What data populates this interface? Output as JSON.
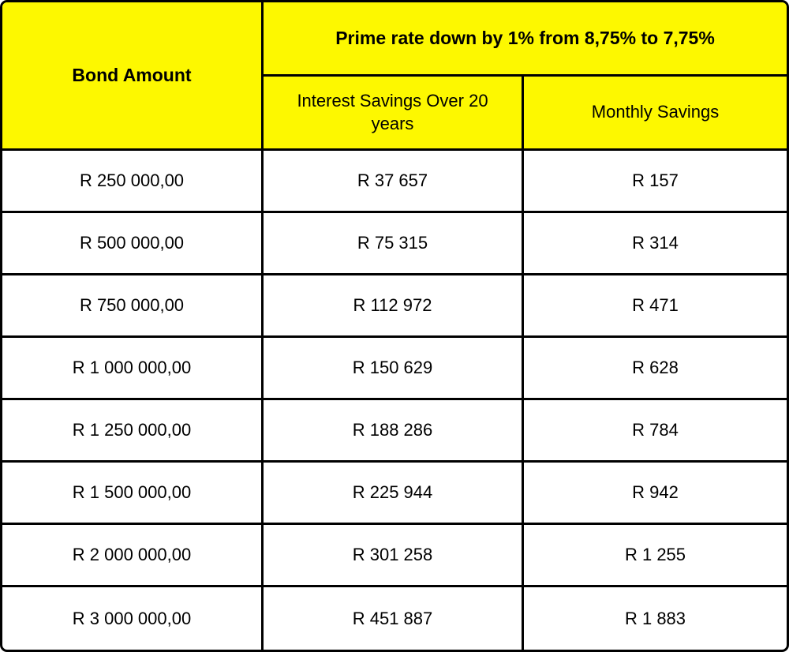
{
  "chart_data": {
    "type": "table",
    "title": "Prime rate down by 1% from 8,75% to 7,75%",
    "columns": [
      "Bond Amount",
      "Interest Savings Over 20 years",
      "Monthly Savings"
    ],
    "rows": [
      [
        "R 250 000,00",
        "R 37 657",
        "R 157"
      ],
      [
        "R 500 000,00",
        "R 75 315",
        "R 314"
      ],
      [
        "R 750 000,00",
        "R 112 972",
        "R 471"
      ],
      [
        "R 1 000 000,00",
        "R 150 629",
        "R 628"
      ],
      [
        "R 1 250 000,00",
        "R 188 286",
        "R 784"
      ],
      [
        "R 1 500 000,00",
        "R 225 944",
        "R 942"
      ],
      [
        "R 2 000 000,00",
        "R 301 258",
        "R 1 255"
      ],
      [
        "R 3 000 000,00",
        "R 451 887",
        "R 1 883"
      ]
    ],
    "layout_hints": {
      "header_rows": 2,
      "banner_spans_columns": [
        2,
        3
      ],
      "grid": "on"
    }
  },
  "colors": {
    "header_bg": "#FDF800",
    "border_color": "#000000",
    "text_color": "#000000",
    "body_bg": "#FFFFFF"
  }
}
